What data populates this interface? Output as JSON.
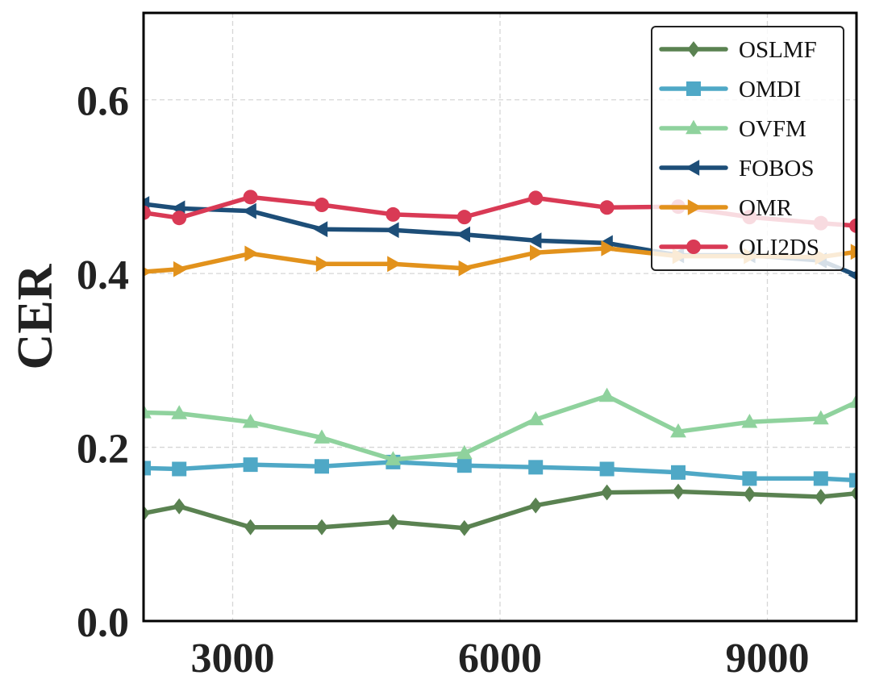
{
  "chart_data": {
    "type": "line",
    "title": "",
    "xlabel": "",
    "ylabel": "CER",
    "xlim": [
      2000,
      10000
    ],
    "ylim": [
      0.0,
      0.7
    ],
    "xticks": [
      3000,
      6000,
      9000
    ],
    "xtick_labels": [
      "3000",
      "6000",
      "9000"
    ],
    "yticks": [
      0.0,
      0.2,
      0.4,
      0.6
    ],
    "ytick_labels": [
      "0.0",
      "0.2",
      "0.4",
      "0.6"
    ],
    "grid": true,
    "legend_position": "top-right",
    "x": [
      2000,
      2400,
      3200,
      4000,
      4800,
      5600,
      6400,
      7200,
      8000,
      8800,
      9600,
      10000
    ],
    "series": [
      {
        "name": "OSLMF",
        "color": "#5a8251",
        "marker": "diamond",
        "values": [
          0.124,
          0.132,
          0.108,
          0.108,
          0.114,
          0.107,
          0.133,
          0.148,
          0.149,
          0.146,
          0.143,
          0.147
        ]
      },
      {
        "name": "OMDI",
        "color": "#4fa8c6",
        "marker": "square",
        "values": [
          0.176,
          0.175,
          0.18,
          0.178,
          0.183,
          0.179,
          0.177,
          0.175,
          0.171,
          0.164,
          0.164,
          0.162
        ]
      },
      {
        "name": "OVFM",
        "color": "#8fd29d",
        "marker": "triangle-up",
        "values": [
          0.24,
          0.239,
          0.229,
          0.211,
          0.186,
          0.193,
          0.232,
          0.259,
          0.218,
          0.229,
          0.233,
          0.252
        ]
      },
      {
        "name": "FOBOS",
        "color": "#1d4e78",
        "marker": "triangle-left",
        "values": [
          0.48,
          0.475,
          0.472,
          0.451,
          0.45,
          0.445,
          0.438,
          0.435,
          0.421,
          0.421,
          0.415,
          0.398
        ]
      },
      {
        "name": "OMR",
        "color": "#e2921c",
        "marker": "triangle-right",
        "values": [
          0.402,
          0.405,
          0.423,
          0.411,
          0.411,
          0.406,
          0.424,
          0.429,
          0.42,
          0.42,
          0.419,
          0.425
        ]
      },
      {
        "name": "OLI2DS",
        "color": "#d93a55",
        "marker": "circle",
        "values": [
          0.47,
          0.464,
          0.488,
          0.479,
          0.468,
          0.465,
          0.487,
          0.476,
          0.477,
          0.465,
          0.458,
          0.455
        ]
      }
    ]
  }
}
